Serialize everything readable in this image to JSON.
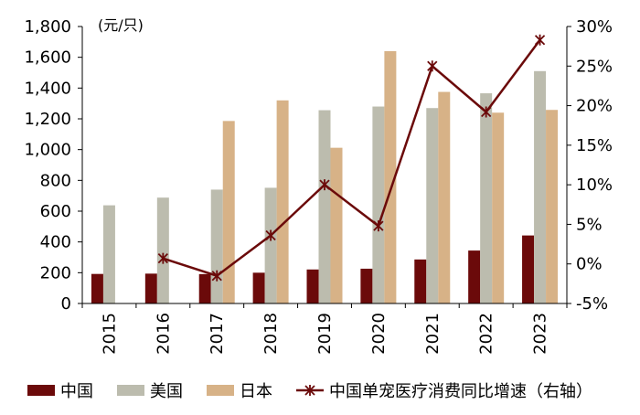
{
  "chart_data": {
    "type": "bar",
    "categories": [
      "2015",
      "2016",
      "2017",
      "2018",
      "2019",
      "2020",
      "2021",
      "2022",
      "2023"
    ],
    "series": [
      {
        "name": "中国",
        "type": "bar",
        "axis": "left",
        "color": "#6b0a0a",
        "values": [
          192,
          194,
          191,
          200,
          221,
          226,
          286,
          344,
          442
        ]
      },
      {
        "name": "美国",
        "type": "bar",
        "axis": "left",
        "color": "#bcbcae",
        "values": [
          638,
          688,
          740,
          752,
          1256,
          1280,
          1270,
          1366,
          1510
        ]
      },
      {
        "name": "日本",
        "type": "bar",
        "axis": "left",
        "color": "#d7b287",
        "values": [
          null,
          null,
          1186,
          1320,
          1012,
          1640,
          1375,
          1240,
          1258
        ]
      },
      {
        "name": "中国单宠医疗消费同比增速（右轴）",
        "type": "line",
        "axis": "right",
        "color": "#6b0a0a",
        "marker": "x-star",
        "values": [
          null,
          0.7,
          -1.5,
          3.6,
          10.0,
          4.8,
          25.0,
          19.2,
          28.3
        ]
      }
    ],
    "ylim_left": [
      0,
      1800
    ],
    "yticks_left": [
      "0",
      "200",
      "400",
      "600",
      "800",
      "1,000",
      "1,200",
      "1,400",
      "1,600",
      "1,800"
    ],
    "ylim_right": [
      -5,
      30
    ],
    "yticks_right": [
      "-5%",
      "0%",
      "5%",
      "10%",
      "15%",
      "20%",
      "25%",
      "30%"
    ],
    "unit_label": "(元/只)",
    "legend_position": "bottom",
    "grid": false
  }
}
